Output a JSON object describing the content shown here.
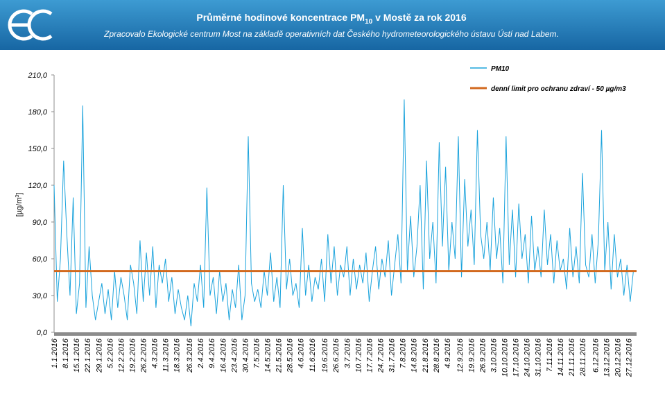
{
  "chart_data": {
    "type": "line",
    "title_prefix": "Průměrné hodinové koncentrace PM",
    "title_sub": "10",
    "title_suffix": " v Mostě za rok 2016",
    "subtitle": "Zpracovalo Ekologické centrum Most na základě operativních dat Českého hydrometeorologického ústavu Ústí nad Labem.",
    "y_label_prefix": "[µg/m",
    "y_label_sup": "3",
    "y_label_suffix": "]",
    "ylim": [
      0,
      210
    ],
    "yticks": [
      {
        "value": 0,
        "label": "0,0"
      },
      {
        "value": 30,
        "label": "30,0"
      },
      {
        "value": 60,
        "label": "60,0"
      },
      {
        "value": 90,
        "label": "90,0"
      },
      {
        "value": 120,
        "label": "120,0"
      },
      {
        "value": 150,
        "label": "150,0"
      },
      {
        "value": 180,
        "label": "180,0"
      },
      {
        "value": 210,
        "label": "210,0"
      }
    ],
    "xticks": [
      "1.1.2016",
      "8.1.2016",
      "15.1.2016",
      "22.1.2016",
      "29.1.2016",
      "5.2.2016",
      "12.2.2016",
      "19.2.2016",
      "26.2.2016",
      "4.3.2016",
      "11.3.2016",
      "18.3.2016",
      "26.3.2016",
      "2.4.2016",
      "9.4.2016",
      "16.4.2016",
      "23.4.2016",
      "30.4.2016",
      "7.5.2016",
      "14.5.2016",
      "21.5.2016",
      "28.5.2016",
      "4.6.2016",
      "11.6.2016",
      "19.6.2016",
      "26.6.2016",
      "3.7.2016",
      "10.7.2016",
      "17.7.2016",
      "24.7.2016",
      "31.7.2016",
      "7.8.2016",
      "14.8.2016",
      "21.8.2016",
      "28.8.2016",
      "4.9.2016",
      "12.9.2016",
      "19.9.2016",
      "26.9.2016",
      "3.10.2016",
      "10.10.2016",
      "17.10.2016",
      "24.10.2016",
      "31.10.2016",
      "7.11.2016",
      "14.11.2016",
      "21.11.2016",
      "28.11.2016",
      "6.12.2016",
      "13.12.2016",
      "20.12.2016",
      "27.12.2016"
    ],
    "x": [
      "1.1.2016",
      "3.1.2016",
      "5.1.2016",
      "7.1.2016",
      "9.1.2016",
      "11.1.2016",
      "13.1.2016",
      "15.1.2016",
      "17.1.2016",
      "19.1.2016",
      "21.1.2016",
      "23.1.2016",
      "25.1.2016",
      "27.1.2016",
      "29.1.2016",
      "31.1.2016",
      "2.2.2016",
      "4.2.2016",
      "6.2.2016",
      "8.2.2016",
      "10.2.2016",
      "12.2.2016",
      "14.2.2016",
      "16.2.2016",
      "18.2.2016",
      "20.2.2016",
      "22.2.2016",
      "24.2.2016",
      "26.2.2016",
      "28.2.2016",
      "1.3.2016",
      "3.3.2016",
      "5.3.2016",
      "7.3.2016",
      "9.3.2016",
      "11.3.2016",
      "13.3.2016",
      "15.3.2016",
      "17.3.2016",
      "19.3.2016",
      "21.3.2016",
      "23.3.2016",
      "25.3.2016",
      "27.3.2016",
      "29.3.2016",
      "31.3.2016",
      "2.4.2016",
      "4.4.2016",
      "6.4.2016",
      "8.4.2016",
      "10.4.2016",
      "12.4.2016",
      "14.4.2016",
      "16.4.2016",
      "18.4.2016",
      "20.4.2016",
      "22.4.2016",
      "24.4.2016",
      "26.4.2016",
      "28.4.2016",
      "30.4.2016",
      "2.5.2016",
      "4.5.2016",
      "6.5.2016",
      "8.5.2016",
      "10.5.2016",
      "12.5.2016",
      "14.5.2016",
      "16.5.2016",
      "18.5.2016",
      "20.5.2016",
      "22.5.2016",
      "24.5.2016",
      "26.5.2016",
      "28.5.2016",
      "30.5.2016",
      "1.6.2016",
      "3.6.2016",
      "5.6.2016",
      "7.6.2016",
      "9.6.2016",
      "11.6.2016",
      "13.6.2016",
      "15.6.2016",
      "17.6.2016",
      "19.6.2016",
      "21.6.2016",
      "23.6.2016",
      "25.6.2016",
      "27.6.2016",
      "29.6.2016",
      "1.7.2016",
      "3.7.2016",
      "5.7.2016",
      "7.7.2016",
      "9.7.2016",
      "11.7.2016",
      "13.7.2016",
      "15.7.2016",
      "17.7.2016",
      "19.7.2016",
      "21.7.2016",
      "23.7.2016",
      "25.7.2016",
      "27.7.2016",
      "29.7.2016",
      "31.7.2016",
      "2.8.2016",
      "4.8.2016",
      "6.8.2016",
      "8.8.2016",
      "10.8.2016",
      "12.8.2016",
      "14.8.2016",
      "16.8.2016",
      "18.8.2016",
      "20.8.2016",
      "22.8.2016",
      "24.8.2016",
      "26.8.2016",
      "28.8.2016",
      "30.8.2016",
      "1.9.2016",
      "3.9.2016",
      "5.9.2016",
      "7.9.2016",
      "9.9.2016",
      "11.9.2016",
      "13.9.2016",
      "15.9.2016",
      "17.9.2016",
      "19.9.2016",
      "21.9.2016",
      "23.9.2016",
      "25.9.2016",
      "27.9.2016",
      "29.9.2016",
      "1.10.2016",
      "3.10.2016",
      "5.10.2016",
      "7.10.2016",
      "9.10.2016",
      "11.10.2016",
      "13.10.2016",
      "15.10.2016",
      "17.10.2016",
      "19.10.2016",
      "21.10.2016",
      "23.10.2016",
      "25.10.2016",
      "27.10.2016",
      "29.10.2016",
      "31.10.2016",
      "2.11.2016",
      "4.11.2016",
      "6.11.2016",
      "8.11.2016",
      "10.11.2016",
      "12.11.2016",
      "14.11.2016",
      "16.11.2016",
      "18.11.2016",
      "20.11.2016",
      "22.11.2016",
      "24.11.2016",
      "26.11.2016",
      "28.11.2016",
      "30.11.2016",
      "2.12.2016",
      "4.12.2016",
      "6.12.2016",
      "8.12.2016",
      "10.12.2016",
      "12.12.2016",
      "14.12.2016",
      "16.12.2016",
      "18.12.2016",
      "20.12.2016",
      "22.12.2016",
      "24.12.2016",
      "26.12.2016",
      "28.12.2016",
      "30.12.2016"
    ],
    "series": [
      {
        "name": "PM10",
        "color": "#1ba3dc",
        "values": [
          120,
          25,
          60,
          140,
          80,
          30,
          110,
          15,
          40,
          185,
          20,
          70,
          30,
          10,
          25,
          40,
          15,
          35,
          10,
          50,
          20,
          45,
          30,
          10,
          55,
          40,
          15,
          75,
          25,
          65,
          30,
          70,
          20,
          55,
          40,
          60,
          25,
          45,
          15,
          35,
          20,
          10,
          30,
          5,
          40,
          25,
          55,
          20,
          118,
          30,
          45,
          15,
          50,
          25,
          40,
          10,
          35,
          20,
          55,
          10,
          30,
          160,
          40,
          25,
          35,
          20,
          50,
          30,
          65,
          25,
          45,
          20,
          120,
          35,
          60,
          30,
          40,
          20,
          85,
          30,
          55,
          25,
          45,
          35,
          60,
          25,
          80,
          40,
          70,
          30,
          55,
          45,
          70,
          30,
          60,
          35,
          55,
          40,
          65,
          25,
          50,
          70,
          35,
          60,
          45,
          75,
          30,
          55,
          80,
          40,
          190,
          50,
          95,
          45,
          70,
          120,
          35,
          140,
          60,
          90,
          40,
          155,
          70,
          135,
          50,
          90,
          60,
          160,
          45,
          125,
          70,
          100,
          55,
          165,
          80,
          60,
          90,
          50,
          110,
          60,
          85,
          40,
          160,
          55,
          100,
          45,
          105,
          60,
          80,
          40,
          95,
          50,
          70,
          45,
          100,
          55,
          80,
          40,
          75,
          50,
          60,
          35,
          85,
          45,
          70,
          40,
          130,
          55,
          45,
          80,
          40,
          75,
          165,
          50,
          90,
          35,
          80,
          45,
          60,
          30,
          55,
          25,
          50
        ]
      }
    ],
    "limit": {
      "name": "denní limit pro ochranu  zdraví - 50 µg/m3",
      "value": 50,
      "color": "#d2691e"
    },
    "axis_color": "#8c8c8c"
  }
}
